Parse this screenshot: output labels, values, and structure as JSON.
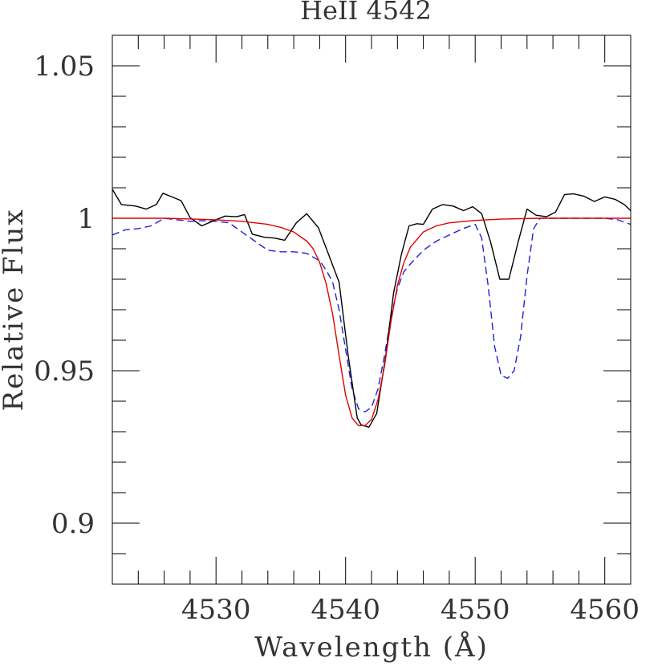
{
  "chart_data": {
    "type": "line",
    "title": "HeII 4542",
    "xlabel": "Wavelength (Å)",
    "ylabel": "Relative Flux",
    "xlim": [
      4522,
      4562
    ],
    "ylim": [
      0.88,
      1.06
    ],
    "x_ticks": [
      {
        "value": 4530,
        "label": "4530"
      },
      {
        "value": 4540,
        "label": "4540"
      },
      {
        "value": 4550,
        "label": "4550"
      },
      {
        "value": 4560,
        "label": "4560"
      }
    ],
    "y_ticks": [
      {
        "value": 0.9,
        "label": "0.9"
      },
      {
        "value": 0.95,
        "label": "0.95"
      },
      {
        "value": 1.0,
        "label": "1"
      },
      {
        "value": 1.05,
        "label": "1.05"
      }
    ],
    "grid": false,
    "series": [
      {
        "style": "solid",
        "color": "#000000",
        "x": [
          4522.0,
          4522.7,
          4523.8,
          4524.6,
          4525.4,
          4525.9,
          4526.6,
          4527.3,
          4528.0,
          4528.9,
          4529.7,
          4530.7,
          4531.6,
          4532.2,
          4532.8,
          4533.7,
          4534.5,
          4535.3,
          4536.2,
          4537.0,
          4537.9,
          4538.7,
          4539.5,
          4540.2,
          4540.9,
          4541.2,
          4541.8,
          4542.4,
          4543.1,
          4543.7,
          4544.3,
          4544.9,
          4545.5,
          4546.0,
          4546.7,
          4547.5,
          4548.3,
          4549.1,
          4549.8,
          4550.5,
          4551.2,
          4551.9,
          4552.6,
          4553.3,
          4554.0,
          4554.7,
          4555.5,
          4556.2,
          4556.9,
          4557.6,
          4558.4,
          4559.2,
          4560.0,
          4560.8,
          4561.5,
          4562.0
        ],
        "values": [
          1.0095,
          1.0045,
          1.004,
          1.003,
          1.0045,
          1.0082,
          1.007,
          1.0058,
          1.0002,
          0.9975,
          0.999,
          1.0007,
          1.0005,
          1.0012,
          0.9948,
          0.9938,
          0.9935,
          0.9928,
          0.9985,
          1.0015,
          0.9969,
          0.988,
          0.979,
          0.955,
          0.9345,
          0.9322,
          0.9315,
          0.936,
          0.955,
          0.9755,
          0.988,
          0.9975,
          0.9982,
          0.998,
          1.003,
          1.0045,
          1.004,
          1.0025,
          1.0038,
          1.0015,
          0.992,
          0.98,
          0.98,
          0.992,
          1.003,
          1.001,
          1.0005,
          1.002,
          1.0078,
          1.008,
          1.0072,
          1.0055,
          1.007,
          1.0062,
          1.0045,
          1.0025
        ]
      },
      {
        "style": "dashed",
        "color": "#1f1fe0",
        "x": [
          4522.0,
          4523.0,
          4524.0,
          4525.0,
          4526.0,
          4527.0,
          4528.0,
          4529.0,
          4530.0,
          4531.0,
          4532.0,
          4533.0,
          4534.0,
          4535.0,
          4536.0,
          4537.0,
          4538.0,
          4538.5,
          4539.0,
          4539.5,
          4540.0,
          4540.5,
          4541.0,
          4541.5,
          4542.0,
          4542.5,
          4543.0,
          4543.5,
          4544.0,
          4544.5,
          4545.0,
          4546.0,
          4547.0,
          4548.0,
          4549.0,
          4550.0,
          4550.5,
          4551.0,
          4551.5,
          4552.0,
          4552.5,
          4553.0,
          4553.5,
          4554.0,
          4554.5,
          4555.0,
          4556.0,
          4557.0,
          4558.0,
          4559.0,
          4560.0,
          4561.0,
          4562.0
        ],
        "values": [
          0.9945,
          0.9962,
          0.9966,
          0.9975,
          1.0,
          0.9995,
          0.999,
          0.9992,
          0.999,
          0.9985,
          0.9955,
          0.9925,
          0.9895,
          0.989,
          0.989,
          0.9885,
          0.986,
          0.983,
          0.979,
          0.97,
          0.957,
          0.944,
          0.9375,
          0.9365,
          0.938,
          0.944,
          0.955,
          0.9675,
          0.977,
          0.9825,
          0.985,
          0.9895,
          0.9925,
          0.9945,
          0.9965,
          0.998,
          0.9935,
          0.978,
          0.958,
          0.9485,
          0.9475,
          0.95,
          0.961,
          0.981,
          0.9965,
          1.0,
          1.0,
          1.0,
          1.0,
          1.0,
          1.0,
          0.9995,
          0.998
        ]
      },
      {
        "style": "solid",
        "color": "#e00000",
        "x": [
          4522.0,
          4526.0,
          4530.0,
          4532.0,
          4534.0,
          4535.0,
          4536.0,
          4537.0,
          4537.5,
          4538.0,
          4538.5,
          4539.0,
          4539.5,
          4540.0,
          4540.5,
          4541.0,
          4541.5,
          4542.0,
          4542.5,
          4543.0,
          4543.5,
          4544.0,
          4544.5,
          4545.0,
          4546.0,
          4547.0,
          4548.0,
          4550.0,
          4552.0,
          4555.0,
          4558.0,
          4562.0
        ],
        "values": [
          1.0,
          1.0,
          0.9995,
          0.999,
          0.998,
          0.997,
          0.9955,
          0.9925,
          0.99,
          0.9855,
          0.9785,
          0.9685,
          0.955,
          0.942,
          0.9345,
          0.932,
          0.932,
          0.934,
          0.9405,
          0.9515,
          0.966,
          0.978,
          0.9855,
          0.9905,
          0.9955,
          0.9975,
          0.9985,
          0.9993,
          0.9997,
          1.0,
          1.0,
          1.0
        ]
      }
    ]
  }
}
